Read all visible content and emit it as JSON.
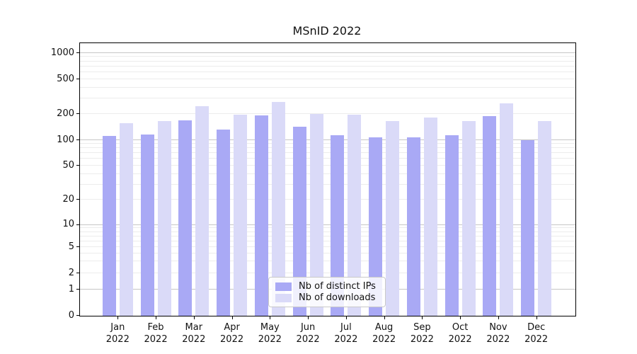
{
  "title": "MSnID 2022",
  "colors": {
    "ips": "#a9a9f5",
    "downloads": "#dadaf8",
    "grid_major": "#c6c6c6",
    "grid_minor": "#ececec",
    "spine": "#000000",
    "text": "#111111",
    "legend_border": "#c9c9c9"
  },
  "legend": {
    "items": [
      {
        "label": "Nb of distinct IPs",
        "color_key": "ips"
      },
      {
        "label": "Nb of downloads",
        "color_key": "downloads"
      }
    ]
  },
  "chart_data": {
    "type": "bar",
    "title": "MSnID 2022",
    "categories": [
      "Jan 2022",
      "Feb 2022",
      "Mar 2022",
      "Apr 2022",
      "May 2022",
      "Jun 2022",
      "Jul 2022",
      "Aug 2022",
      "Sep 2022",
      "Oct 2022",
      "Nov 2022",
      "Dec 2022"
    ],
    "series": [
      {
        "name": "Nb of distinct IPs",
        "values": [
          112,
          116,
          168,
          133,
          191,
          143,
          113,
          108,
          108,
          114,
          190,
          100
        ]
      },
      {
        "name": "Nb of downloads",
        "values": [
          157,
          165,
          244,
          197,
          275,
          200,
          198,
          165,
          182,
          165,
          265,
          167
        ]
      }
    ],
    "xlabel": "",
    "ylabel": "",
    "yscale": "log-like (asinh), linear below 1",
    "yticks": [
      0,
      1,
      2,
      5,
      10,
      20,
      50,
      100,
      200,
      500,
      1000
    ],
    "major_grid_at": [
      1,
      10,
      100,
      1000
    ],
    "ylim": [
      0,
      1150
    ],
    "grid": true,
    "legend_position": "lower center"
  }
}
